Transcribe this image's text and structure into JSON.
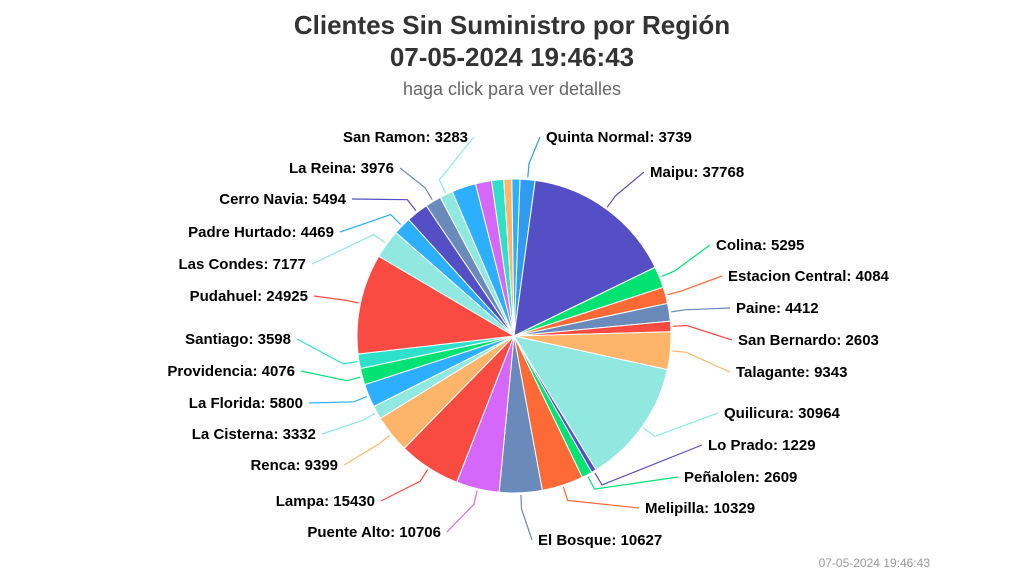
{
  "title_line1": "Clientes Sin Suministro por Región",
  "title_line2": "07-05-2024 19:46:43",
  "subtitle": "haga click para ver detalles",
  "credit": "07-05-2024 19:46:43",
  "chart_data": {
    "type": "pie",
    "title": "Clientes Sin Suministro por Región 07-05-2024 19:46:43",
    "subtitle": "haga click para ver detalles",
    "slices": [
      {
        "name": "Quinta Normal",
        "value": 3739,
        "color": "#2f9cf0"
      },
      {
        "name": "Maipu",
        "value": 37768,
        "color": "#544fc5"
      },
      {
        "name": "Colina",
        "value": 5295,
        "color": "#00e272"
      },
      {
        "name": "Estacion Central",
        "value": 4084,
        "color": "#fe6a35"
      },
      {
        "name": "Paine",
        "value": 4412,
        "color": "#6b8abc"
      },
      {
        "name": "San Bernardo",
        "value": 2603,
        "color": "#fa4b42"
      },
      {
        "name": "Talagante",
        "value": 9343,
        "color": "#feb56a"
      },
      {
        "name": "Quilicura",
        "value": 30964,
        "color": "#91e8e1"
      },
      {
        "name": "Lo Prado",
        "value": 1229,
        "color": "#544fc5"
      },
      {
        "name": "Peñalolen",
        "value": 2609,
        "color": "#00e272"
      },
      {
        "name": "Melipilla",
        "value": 10329,
        "color": "#fe6a35"
      },
      {
        "name": "El Bosque",
        "value": 10627,
        "color": "#6b8abc"
      },
      {
        "name": "Puente Alto",
        "value": 10706,
        "color": "#d568fb"
      },
      {
        "name": "Lampa",
        "value": 15430,
        "color": "#fa4b42"
      },
      {
        "name": "Renca",
        "value": 9399,
        "color": "#feb56a"
      },
      {
        "name": "La Cisterna",
        "value": 3332,
        "color": "#91e8e1"
      },
      {
        "name": "La Florida",
        "value": 5800,
        "color": "#2caffe"
      },
      {
        "name": "Providencia",
        "value": 4076,
        "color": "#00e272"
      },
      {
        "name": "Santiago",
        "value": 3598,
        "color": "#2ee0ca"
      },
      {
        "name": "Pudahuel",
        "value": 24925,
        "color": "#fa4b42"
      },
      {
        "name": "Las Condes",
        "value": 7177,
        "color": "#91e8e1"
      },
      {
        "name": "Padre Hurtado",
        "value": 4469,
        "color": "#2caffe"
      },
      {
        "name": "Cerro Navia",
        "value": 5494,
        "color": "#544fc5"
      },
      {
        "name": "La Reina",
        "value": 3976,
        "color": "#6b8abc"
      },
      {
        "name": "San Ramon",
        "value": 3283,
        "color": "#91e8e1"
      },
      {
        "name": "",
        "value": 6000,
        "color": "#2caffe"
      },
      {
        "name": "",
        "value": 4000,
        "color": "#d568fb"
      },
      {
        "name": "",
        "value": 3000,
        "color": "#2ee0ca"
      },
      {
        "name": "",
        "value": 2000,
        "color": "#feb56a"
      },
      {
        "name": "",
        "value": 2000,
        "color": "#2caffe"
      }
    ]
  }
}
